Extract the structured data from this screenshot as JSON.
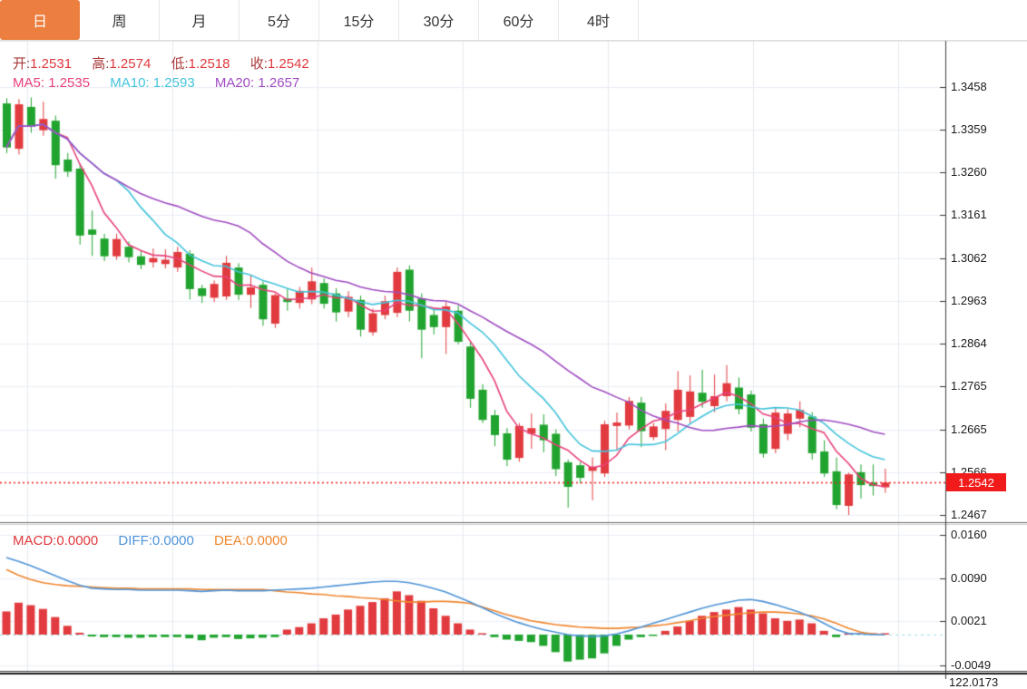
{
  "tab_bar": {
    "tabs": [
      {
        "label": "日",
        "active": true
      },
      {
        "label": "周",
        "active": false
      },
      {
        "label": "月",
        "active": false
      },
      {
        "label": "5分",
        "active": false
      },
      {
        "label": "15分",
        "active": false
      },
      {
        "label": "30分",
        "active": false
      },
      {
        "label": "60分",
        "active": false
      },
      {
        "label": "4时",
        "active": false
      }
    ]
  },
  "legend": {
    "ohlc": {
      "open_label": "开:",
      "open_value": "1.2531",
      "high_label": "高:",
      "high_value": "1.2574",
      "low_label": "低:",
      "low_value": "1.2518",
      "close_label": "收:",
      "close_value": "1.2542"
    },
    "ma": {
      "ma5_label": "MA5:",
      "ma5_value": "1.2535",
      "ma10_label": "MA10:",
      "ma10_value": "1.2593",
      "ma20_label": "MA20:",
      "ma20_value": "1.2657"
    },
    "macd": {
      "macd_label": "MACD:",
      "macd_value": "0.0000",
      "diff_label": "DIFF:",
      "diff_value": "0.0000",
      "dea_label": "DEA:",
      "dea_value": "0.0000"
    }
  },
  "price_axis": {
    "ticks": [
      "1.3458",
      "1.3359",
      "1.3260",
      "1.3161",
      "1.3062",
      "1.2963",
      "1.2864",
      "1.2765",
      "1.2665",
      "1.2566",
      "1.2467"
    ],
    "current_price": "1.2542"
  },
  "macd_axis": {
    "ticks": [
      "0.0160",
      "0.0090",
      "0.0021",
      "-0.0049"
    ],
    "clipped_label": "122.0173"
  },
  "colors": {
    "up": "#e23b3f",
    "down": "#21a42f",
    "ma5": "#e8417c",
    "ma10": "#44c4dc",
    "ma20": "#a04cc2",
    "diff": "#4f94d8",
    "dea": "#f0862d",
    "active_tab": "#ec7f3f",
    "current_line": "#f21b1b",
    "grid": "#e9eef5",
    "zero_dash": "#9ddcec",
    "axis_line": "#3a3a3a"
  },
  "chart_data": {
    "type": "candlestick",
    "panels": [
      "price",
      "MACD"
    ],
    "price_ylim": [
      1.2467,
      1.3458
    ],
    "macd_ylim": [
      -0.0049,
      0.016
    ],
    "ma_periods": [
      5,
      10,
      20
    ],
    "candles": [
      [
        1.342,
        1.3432,
        1.3305,
        1.3318
      ],
      [
        1.3315,
        1.343,
        1.3302,
        1.3418
      ],
      [
        1.3412,
        1.3434,
        1.3352,
        1.3366
      ],
      [
        1.3358,
        1.3424,
        1.3345,
        1.3384
      ],
      [
        1.338,
        1.3392,
        1.3246,
        1.3277
      ],
      [
        1.329,
        1.3305,
        1.325,
        1.3262
      ],
      [
        1.3269,
        1.328,
        1.3093,
        1.3114
      ],
      [
        1.3128,
        1.3172,
        1.3067,
        1.3116
      ],
      [
        1.3107,
        1.3118,
        1.3055,
        1.3066
      ],
      [
        1.3066,
        1.3118,
        1.3058,
        1.3106
      ],
      [
        1.3088,
        1.31,
        1.3052,
        1.3064
      ],
      [
        1.3066,
        1.308,
        1.3036,
        1.3046
      ],
      [
        1.3052,
        1.3084,
        1.304,
        1.3062
      ],
      [
        1.3048,
        1.3082,
        1.3038,
        1.3058
      ],
      [
        1.304,
        1.3088,
        1.303,
        1.3076
      ],
      [
        1.3072,
        1.308,
        1.2966,
        1.299
      ],
      [
        1.2992,
        1.3,
        1.2958,
        1.2974
      ],
      [
        1.297,
        1.301,
        1.296,
        1.3002
      ],
      [
        1.2973,
        1.3067,
        1.2965,
        1.3051
      ],
      [
        1.304,
        1.305,
        1.2965,
        1.2977
      ],
      [
        1.2977,
        1.3023,
        1.2946,
        1.2994
      ],
      [
        1.3,
        1.3008,
        1.2905,
        1.292
      ],
      [
        1.291,
        1.298,
        1.29,
        1.2976
      ],
      [
        1.2968,
        1.299,
        1.294,
        1.296
      ],
      [
        1.2958,
        1.2995,
        1.2945,
        1.2986
      ],
      [
        1.2966,
        1.304,
        1.2955,
        1.3008
      ],
      [
        1.3004,
        1.3015,
        1.2945,
        1.2956
      ],
      [
        1.298,
        1.2992,
        1.2915,
        1.2936
      ],
      [
        1.2938,
        1.2985,
        1.2925,
        1.2972
      ],
      [
        1.2965,
        1.2975,
        1.288,
        1.2896
      ],
      [
        1.289,
        1.2945,
        1.2882,
        1.2934
      ],
      [
        1.293,
        1.2975,
        1.292,
        1.2962
      ],
      [
        1.2935,
        1.304,
        1.2925,
        1.303
      ],
      [
        1.3035,
        1.3045,
        1.2915,
        1.294
      ],
      [
        1.2968,
        1.298,
        1.283,
        1.2896
      ],
      [
        1.293,
        1.2945,
        1.2885,
        1.2902
      ],
      [
        1.2902,
        1.296,
        1.284,
        1.295
      ],
      [
        1.294,
        1.2952,
        1.2862,
        1.2868
      ],
      [
        1.2857,
        1.287,
        1.2715,
        1.2736
      ],
      [
        1.2757,
        1.277,
        1.268,
        1.2687
      ],
      [
        1.2698,
        1.271,
        1.2626,
        1.2652
      ],
      [
        1.2656,
        1.2668,
        1.258,
        1.2595
      ],
      [
        1.2599,
        1.268,
        1.259,
        1.2673
      ],
      [
        1.2655,
        1.2702,
        1.262,
        1.2668
      ],
      [
        1.2676,
        1.27,
        1.2612,
        1.264
      ],
      [
        1.2655,
        1.2665,
        1.2557,
        1.2573
      ],
      [
        1.2589,
        1.2595,
        1.2484,
        1.2532
      ],
      [
        1.2582,
        1.259,
        1.254,
        1.2553
      ],
      [
        1.2569,
        1.26,
        1.2501,
        1.2579
      ],
      [
        1.2563,
        1.2685,
        1.2555,
        1.2677
      ],
      [
        1.2673,
        1.2704,
        1.2616,
        1.2681
      ],
      [
        1.2674,
        1.274,
        1.2665,
        1.2731
      ],
      [
        1.2727,
        1.274,
        1.2624,
        1.2661
      ],
      [
        1.2647,
        1.268,
        1.264,
        1.2672
      ],
      [
        1.2666,
        1.2725,
        1.2617,
        1.2708
      ],
      [
        1.2687,
        1.28,
        1.266,
        1.2757
      ],
      [
        1.2694,
        1.279,
        1.268,
        1.2753
      ],
      [
        1.275,
        1.2803,
        1.2715,
        1.2729
      ],
      [
        1.2719,
        1.2792,
        1.2705,
        1.2742
      ],
      [
        1.2742,
        1.2814,
        1.273,
        1.2772
      ],
      [
        1.2762,
        1.2785,
        1.27,
        1.2712
      ],
      [
        1.2746,
        1.2755,
        1.266,
        1.2669
      ],
      [
        1.2677,
        1.269,
        1.26,
        1.2609
      ],
      [
        1.262,
        1.2715,
        1.261,
        1.2704
      ],
      [
        1.2655,
        1.2712,
        1.264,
        1.2702
      ],
      [
        1.269,
        1.273,
        1.267,
        1.271
      ],
      [
        1.2695,
        1.2705,
        1.2595,
        1.261
      ],
      [
        1.2614,
        1.264,
        1.2555,
        1.2563
      ],
      [
        1.2568,
        1.26,
        1.248,
        1.249
      ],
      [
        1.2488,
        1.2565,
        1.2467,
        1.2561
      ],
      [
        1.2566,
        1.2584,
        1.2505,
        1.2536
      ],
      [
        1.2542,
        1.2584,
        1.2512,
        1.2534
      ],
      [
        1.2531,
        1.2574,
        1.2518,
        1.2542
      ]
    ],
    "macd": {
      "hist": [
        0.0037,
        0.0051,
        0.0047,
        0.0041,
        0.0028,
        0.0014,
        0.0003,
        -0.0003,
        -0.0004,
        -0.0004,
        -0.0005,
        -0.0005,
        -0.0004,
        -0.0004,
        -0.0004,
        -0.0006,
        -0.0009,
        -0.0005,
        -0.0004,
        -0.0007,
        -0.0006,
        -0.0005,
        -0.0004,
        0.0008,
        0.0012,
        0.0018,
        0.0026,
        0.0032,
        0.004,
        0.0046,
        0.0052,
        0.0058,
        0.0069,
        0.0063,
        0.0054,
        0.0042,
        0.003,
        0.0018,
        0.0008,
        0.0002,
        -0.0004,
        -0.0008,
        -0.001,
        -0.0012,
        -0.0018,
        -0.0028,
        -0.0043,
        -0.004,
        -0.0038,
        -0.003,
        -0.0018,
        -0.0008,
        -0.0004,
        -0.0002,
        0.0006,
        0.0013,
        0.0022,
        0.003,
        0.0036,
        0.004,
        0.0044,
        0.004,
        0.0034,
        0.0026,
        0.0022,
        0.0024,
        0.0018,
        0.0006,
        -0.0004,
        0.0002,
        0.0002,
        0.0001,
        0.0
      ],
      "diff": [
        0.0123,
        0.0117,
        0.011,
        0.0102,
        0.0094,
        0.0086,
        0.0079,
        0.0074,
        0.0073,
        0.0072,
        0.0072,
        0.0071,
        0.0071,
        0.0071,
        0.0071,
        0.007,
        0.0069,
        0.007,
        0.0071,
        0.007,
        0.007,
        0.007,
        0.0071,
        0.0072,
        0.0073,
        0.0074,
        0.0076,
        0.0078,
        0.008,
        0.0082,
        0.0084,
        0.0085,
        0.0085,
        0.0083,
        0.0079,
        0.0074,
        0.0068,
        0.006,
        0.0052,
        0.0043,
        0.0034,
        0.0026,
        0.0019,
        0.0013,
        0.0008,
        0.0004,
        0.0,
        -0.0002,
        -0.0003,
        -0.0002,
        0.0001,
        0.0006,
        0.0012,
        0.0018,
        0.0024,
        0.003,
        0.0036,
        0.0042,
        0.0047,
        0.0051,
        0.0055,
        0.0056,
        0.0053,
        0.0048,
        0.0042,
        0.0036,
        0.0028,
        0.0018,
        0.0008,
        0.0002,
        0.0001,
        0.0,
        0.0
      ],
      "dea": [
        0.0104,
        0.0095,
        0.0088,
        0.0083,
        0.008,
        0.0078,
        0.0077,
        0.0076,
        0.0075,
        0.0074,
        0.0074,
        0.0073,
        0.0073,
        0.0073,
        0.0073,
        0.0073,
        0.0072,
        0.0072,
        0.0072,
        0.0072,
        0.0072,
        0.0072,
        0.007,
        0.0068,
        0.0067,
        0.0065,
        0.0064,
        0.0062,
        0.0061,
        0.0059,
        0.0058,
        0.0056,
        0.0054,
        0.0052,
        0.0052,
        0.0053,
        0.0053,
        0.0052,
        0.005,
        0.0044,
        0.0038,
        0.0032,
        0.0027,
        0.0022,
        0.0019,
        0.0016,
        0.0014,
        0.0012,
        0.0011,
        0.001,
        0.001,
        0.0011,
        0.0012,
        0.0014,
        0.0016,
        0.0019,
        0.0022,
        0.0026,
        0.0029,
        0.0031,
        0.0033,
        0.0035,
        0.0036,
        0.0036,
        0.0035,
        0.0033,
        0.003,
        0.0025,
        0.0018,
        0.001,
        0.0004,
        0.0001,
        0.0
      ]
    }
  }
}
